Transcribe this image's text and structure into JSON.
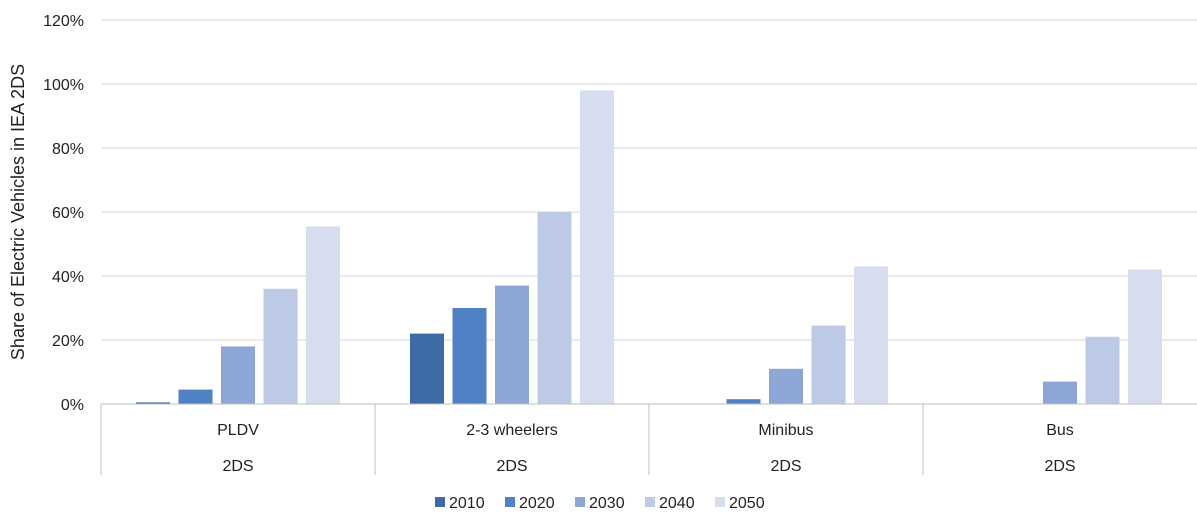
{
  "chart_data": {
    "type": "bar",
    "ylabel": "Share of Electric Vehicles in IEA 2DS",
    "xlabel": "",
    "ylim": [
      0,
      120
    ],
    "yticks": [
      "0%",
      "20%",
      "40%",
      "60%",
      "80%",
      "100%",
      "120%"
    ],
    "categories": [
      "PLDV",
      "2-3 wheelers",
      "Minibus",
      "Bus"
    ],
    "subcategories": [
      "2DS",
      "2DS",
      "2DS",
      "2DS"
    ],
    "series": [
      {
        "name": "2010",
        "color": "#3e6aa8",
        "values": [
          0.5,
          22,
          0,
          0
        ]
      },
      {
        "name": "2020",
        "color": "#4f81c4",
        "values": [
          4.5,
          30,
          1.5,
          0
        ]
      },
      {
        "name": "2030",
        "color": "#8ea6d6",
        "values": [
          18,
          37,
          11,
          7
        ]
      },
      {
        "name": "2040",
        "color": "#bccae6",
        "values": [
          36,
          60,
          24.5,
          21
        ]
      },
      {
        "name": "2050",
        "color": "#d5ddef",
        "values": [
          55.5,
          98,
          43,
          42
        ]
      }
    ],
    "grid": true,
    "legend_position": "bottom"
  }
}
